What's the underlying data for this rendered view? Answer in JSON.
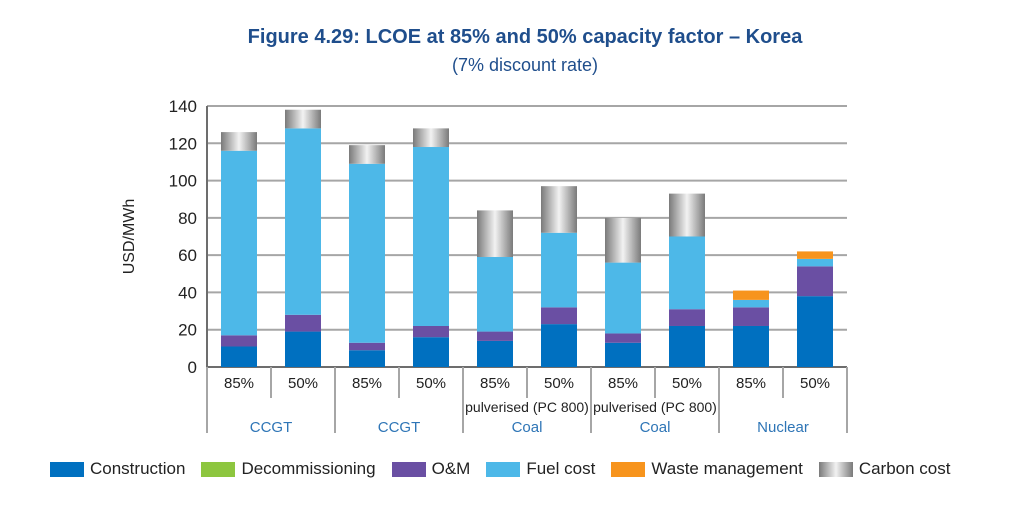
{
  "chart_data": {
    "type": "bar",
    "stacked": true,
    "title": "Figure 4.29: LCOE at 85% and 50% capacity factor – Korea",
    "subtitle": "(7% discount rate)",
    "ylabel": "USD/MWh",
    "ylim": [
      0,
      140
    ],
    "yticks": [
      0,
      20,
      40,
      60,
      80,
      100,
      120,
      140
    ],
    "categories": [
      "85%",
      "50%",
      "85%",
      "50%",
      "85%",
      "50%",
      "85%",
      "50%",
      "85%",
      "50%"
    ],
    "groups": [
      {
        "label": "CCGT",
        "sublabel": ""
      },
      {
        "label": "CCGT",
        "sublabel": ""
      },
      {
        "label": "Coal",
        "sublabel": "pulverised (PC 800)"
      },
      {
        "label": "Coal",
        "sublabel": "pulverised (PC 800)"
      },
      {
        "label": "Nuclear",
        "sublabel": ""
      }
    ],
    "series": [
      {
        "name": "Construction",
        "color": "#0070c0",
        "values": [
          11,
          19,
          9,
          16,
          14,
          23,
          13,
          22,
          22,
          38
        ]
      },
      {
        "name": "Decommissioning",
        "color": "#8dc63f",
        "values": [
          0,
          0,
          0,
          0,
          0,
          0,
          0,
          0,
          0,
          0
        ]
      },
      {
        "name": "O&M",
        "color": "#6a4fa3",
        "values": [
          6,
          9,
          4,
          6,
          5,
          9,
          5,
          9,
          10,
          16
        ]
      },
      {
        "name": "Fuel cost",
        "color": "#4db8e8",
        "values": [
          99,
          100,
          96,
          96,
          40,
          40,
          38,
          39,
          4,
          4
        ]
      },
      {
        "name": "Waste management",
        "color": "#f7941d",
        "values": [
          0,
          0,
          0,
          0,
          0,
          0,
          0,
          0,
          5,
          4
        ]
      },
      {
        "name": "Carbon cost",
        "color": "#9d9d9d",
        "values": [
          10,
          10,
          10,
          10,
          25,
          25,
          24,
          23,
          0,
          0
        ]
      }
    ]
  }
}
